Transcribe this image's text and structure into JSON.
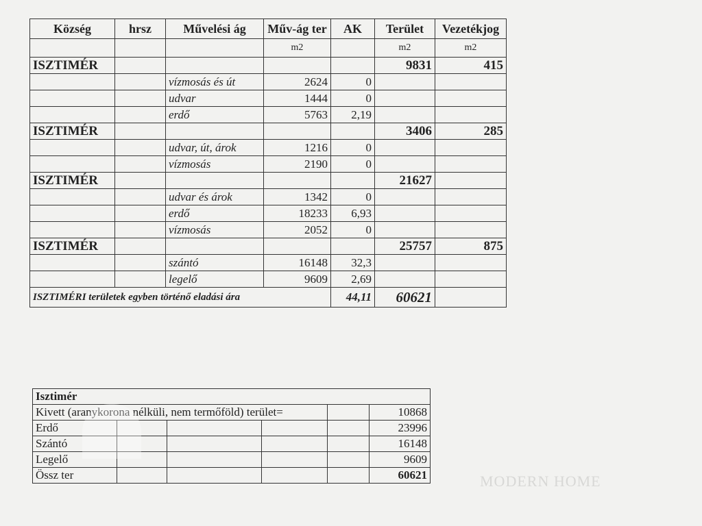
{
  "main_table": {
    "headers": [
      "Község",
      "hrsz",
      "Művelési ág",
      "Műv-ág ter",
      "AK",
      "Terület",
      "Vezetékjog"
    ],
    "units": [
      "",
      "",
      "",
      "m2",
      "",
      "m2",
      "m2"
    ],
    "rows": [
      {
        "kozseg": "ISZTIMÉR",
        "hrsz": "",
        "ag": "",
        "ter": "",
        "ak": "",
        "terulet": "9831",
        "vez": "415"
      },
      {
        "kozseg": "",
        "hrsz": "",
        "ag": "vízmosás és út",
        "ter": "2624",
        "ak": "0",
        "terulet": "",
        "vez": ""
      },
      {
        "kozseg": "",
        "hrsz": "",
        "ag": "udvar",
        "ter": "1444",
        "ak": "0",
        "terulet": "",
        "vez": ""
      },
      {
        "kozseg": "",
        "hrsz": "",
        "ag": "erdő",
        "ter": "5763",
        "ak": "2,19",
        "terulet": "",
        "vez": ""
      },
      {
        "kozseg": "ISZTIMÉR",
        "hrsz": "",
        "ag": "",
        "ter": "",
        "ak": "",
        "terulet": "3406",
        "vez": "285"
      },
      {
        "kozseg": "",
        "hrsz": "",
        "ag": "udvar, út, árok",
        "ter": "1216",
        "ak": "0",
        "terulet": "",
        "vez": ""
      },
      {
        "kozseg": "",
        "hrsz": "",
        "ag": "vízmosás",
        "ter": "2190",
        "ak": "0",
        "terulet": "",
        "vez": ""
      },
      {
        "kozseg": "ISZTIMÉR",
        "hrsz": "",
        "ag": "",
        "ter": "",
        "ak": "",
        "terulet": "21627",
        "vez": ""
      },
      {
        "kozseg": "",
        "hrsz": "",
        "ag": "udvar és árok",
        "ter": "1342",
        "ak": "0",
        "terulet": "",
        "vez": ""
      },
      {
        "kozseg": "",
        "hrsz": "",
        "ag": "erdő",
        "ter": "18233",
        "ak": "6,93",
        "terulet": "",
        "vez": ""
      },
      {
        "kozseg": "",
        "hrsz": "",
        "ag": "vízmosás",
        "ter": "2052",
        "ak": "0",
        "terulet": "",
        "vez": ""
      },
      {
        "kozseg": "ISZTIMÉR",
        "hrsz": "",
        "ag": "",
        "ter": "",
        "ak": "",
        "terulet": "25757",
        "vez": "875"
      },
      {
        "kozseg": "",
        "hrsz": "",
        "ag": "szántó",
        "ter": "16148",
        "ak": "32,3",
        "terulet": "",
        "vez": ""
      },
      {
        "kozseg": "",
        "hrsz": "",
        "ag": "legelő",
        "ter": "9609",
        "ak": "2,69",
        "terulet": "",
        "vez": ""
      }
    ],
    "total": {
      "label": "ISZTIMÉRI területek  egyben történő eladási ára",
      "ak": "44,11",
      "terulet": "60621"
    }
  },
  "summary_table": {
    "title": "Isztimér",
    "rows": [
      {
        "label": "Kivett (aranykorona nélküli, nem termőföld) terület=",
        "value": "10868"
      },
      {
        "label": "Erdő",
        "value": "23996"
      },
      {
        "label": "Szántó",
        "value": "16148"
      },
      {
        "label": "Legelő",
        "value": "9609"
      },
      {
        "label": "Össz ter",
        "value": "60621"
      }
    ]
  },
  "watermark": "MODERN HOME"
}
